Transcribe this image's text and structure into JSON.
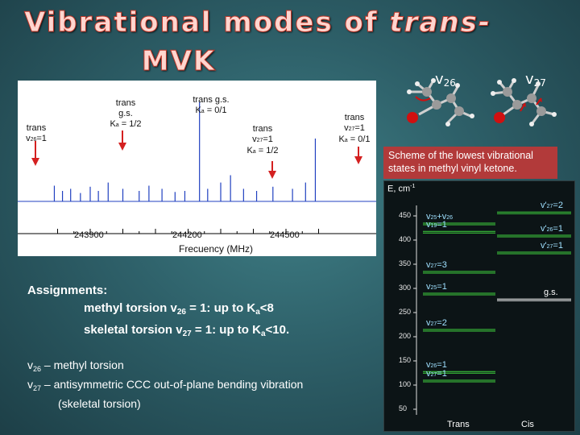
{
  "title": {
    "line1_a": "Vibrational modes of ",
    "line1_b": "trans-",
    "line2": "MVK"
  },
  "modes": {
    "v26": "26",
    "v27": "27",
    "v_symbol": "v"
  },
  "spectrum": {
    "labels": {
      "l1_a": "trans",
      "l1_b": "v",
      "l1_c": "26",
      "l1_d": "=1",
      "l2_a": "trans",
      "l2_b": "g.s.",
      "l2_c": "K",
      "l2_d": "a",
      "l2_e": " = 1/2",
      "l3_a": "trans g.s.",
      "l3_b": "K",
      "l3_c": "a",
      "l3_d": " = 0/1",
      "l4_a": "trans",
      "l4_b": "v",
      "l4_c": "27",
      "l4_d": "=1",
      "l4_e": "K",
      "l4_f": "a",
      "l4_g": " = 1/2",
      "l5_a": "trans",
      "l5_b": "v",
      "l5_c": "27",
      "l5_d": "=1",
      "l5_e": "K",
      "l5_f": "a",
      "l5_g": " = 0/1"
    },
    "ticks": [
      "243900",
      "244200",
      "244500"
    ],
    "x_title": "Frecuency (MHz)",
    "peaks": [
      {
        "x": 243790,
        "h": 0.15
      },
      {
        "x": 243815,
        "h": 0.1
      },
      {
        "x": 243840,
        "h": 0.12
      },
      {
        "x": 243870,
        "h": 0.08
      },
      {
        "x": 243900,
        "h": 0.14
      },
      {
        "x": 243925,
        "h": 0.1
      },
      {
        "x": 243955,
        "h": 0.18
      },
      {
        "x": 244000,
        "h": 0.12
      },
      {
        "x": 244050,
        "h": 0.1
      },
      {
        "x": 244080,
        "h": 0.15
      },
      {
        "x": 244120,
        "h": 0.12
      },
      {
        "x": 244160,
        "h": 0.09
      },
      {
        "x": 244190,
        "h": 0.1
      },
      {
        "x": 244235,
        "h": 0.95
      },
      {
        "x": 244260,
        "h": 0.12
      },
      {
        "x": 244300,
        "h": 0.18
      },
      {
        "x": 244330,
        "h": 0.25
      },
      {
        "x": 244370,
        "h": 0.12
      },
      {
        "x": 244410,
        "h": 0.1
      },
      {
        "x": 244460,
        "h": 0.14
      },
      {
        "x": 244520,
        "h": 0.12
      },
      {
        "x": 244560,
        "h": 0.18
      },
      {
        "x": 244590,
        "h": 0.6
      }
    ]
  },
  "scheme_caption": "Scheme of the lowest vibrational states in methyl vinyl ketone.",
  "energy": {
    "axis_label": "E, cm",
    "axis_exp": "-1",
    "yticks": [
      "450",
      "400",
      "350",
      "300",
      "250",
      "200",
      "150",
      "100",
      "50"
    ],
    "x_labels": [
      "Trans",
      "Cis"
    ],
    "trans_levels": [
      {
        "name": "v",
        "sub": "25",
        "suffix": "+v",
        "sub2": "26",
        "value": 435
      },
      {
        "name": "v",
        "sub": "19",
        "suffix": "=1",
        "value": 418
      },
      {
        "name": "v",
        "sub": "27",
        "suffix": "=3",
        "value": 335
      },
      {
        "name": "v",
        "sub": "25",
        "suffix": "=1",
        "value": 290
      },
      {
        "name": "v",
        "sub": "27",
        "suffix": "=2",
        "value": 215
      },
      {
        "name": "v",
        "sub": "26",
        "suffix": "=1",
        "value": 128
      },
      {
        "name": "v",
        "sub": "27",
        "suffix": "=1",
        "value": 110
      }
    ],
    "cis_levels": [
      {
        "name": "v'",
        "sub": "27",
        "suffix": "=2",
        "value": 458
      },
      {
        "name": "v'",
        "sub": "26",
        "suffix": "=1",
        "value": 410
      },
      {
        "name": "v'",
        "sub": "27",
        "suffix": "=1",
        "value": 375
      },
      {
        "name": "g.s.",
        "value": 278
      }
    ]
  },
  "assignments": {
    "head": "Assignments:",
    "row1_a": "methyl torsion v",
    "row1_b": "26",
    "row1_c": " = 1: up to K",
    "row1_d": "a",
    "row1_e": "<8",
    "row2_a": "skeletal torsion v",
    "row2_b": "27",
    "row2_c": " = 1: up to K",
    "row2_d": "a",
    "row2_e": "<10."
  },
  "descriptions": {
    "d1_a": "v",
    "d1_b": "26",
    "d1_c": " – methyl torsion",
    "d2_a": "v",
    "d2_b": "27",
    "d2_c": " – antisymmetric CCC out-of-plane bending vibration",
    "d3": "(skeletal torsion)"
  },
  "colors": {
    "arrow": "#d42020",
    "level_green": "#3fd23f",
    "level_white": "#ffffff",
    "trace": "#2040c0"
  }
}
